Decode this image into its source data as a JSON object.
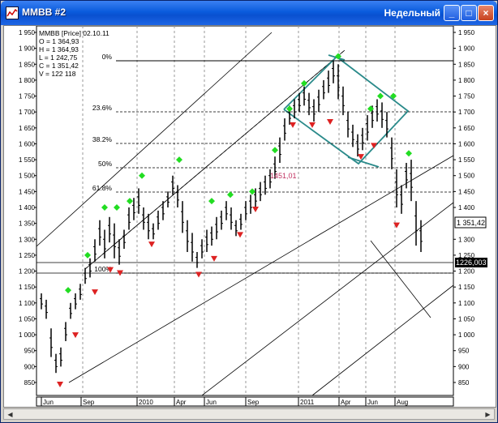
{
  "window": {
    "title": "MMBB #2",
    "timeframe": "Недельный",
    "minimize": "_",
    "maximize": "□",
    "close": "×"
  },
  "info": {
    "symbol_line": "MMBB [Price]  02.10.11",
    "o": "O = 1 364,93",
    "h": "H = 1 364,93",
    "l": "L = 1 242,75",
    "c": "C = 1 351,42",
    "v": "V = 122 118"
  },
  "price_axis": {
    "left_labels": [
      "1 950",
      "1 900",
      "1 850",
      "1 800",
      "1 750",
      "1 700",
      "1 650",
      "1 600",
      "1 550",
      "1 500",
      "1 450",
      "1 400",
      "1 350",
      "1 300",
      "1 250",
      "1 200",
      "1 150",
      "1 100",
      "1 050",
      "1 000",
      "950",
      "900",
      "850"
    ],
    "right_labels": [
      "1 950",
      "1 900",
      "1 850",
      "1 800",
      "1 750",
      "1 700",
      "1 650",
      "1 600",
      "1 550",
      "1 500",
      "1 450",
      "1 400",
      "1 300",
      "1 250",
      "1 200",
      "1 150",
      "1 100",
      "1 050",
      "1 000",
      "950",
      "900",
      "850"
    ],
    "last_price_tag": "1 351,42",
    "level_tag": "1226,003"
  },
  "time_axis": [
    "Jun",
    "Sep",
    "2010",
    "Apr",
    "Jun",
    "Sep",
    "2011",
    "Apr",
    "Jun",
    "Aug"
  ],
  "fib_labels": [
    "0%",
    "23.6%",
    "38.2%",
    "50%",
    "61.8%",
    "100%"
  ],
  "annotation": "1451,01",
  "colors": {
    "candle": "#000000",
    "up_arrow": "#22dd22",
    "down_arrow": "#dd2222",
    "diamond": "#2a8a8a",
    "grid": "#888888"
  }
}
